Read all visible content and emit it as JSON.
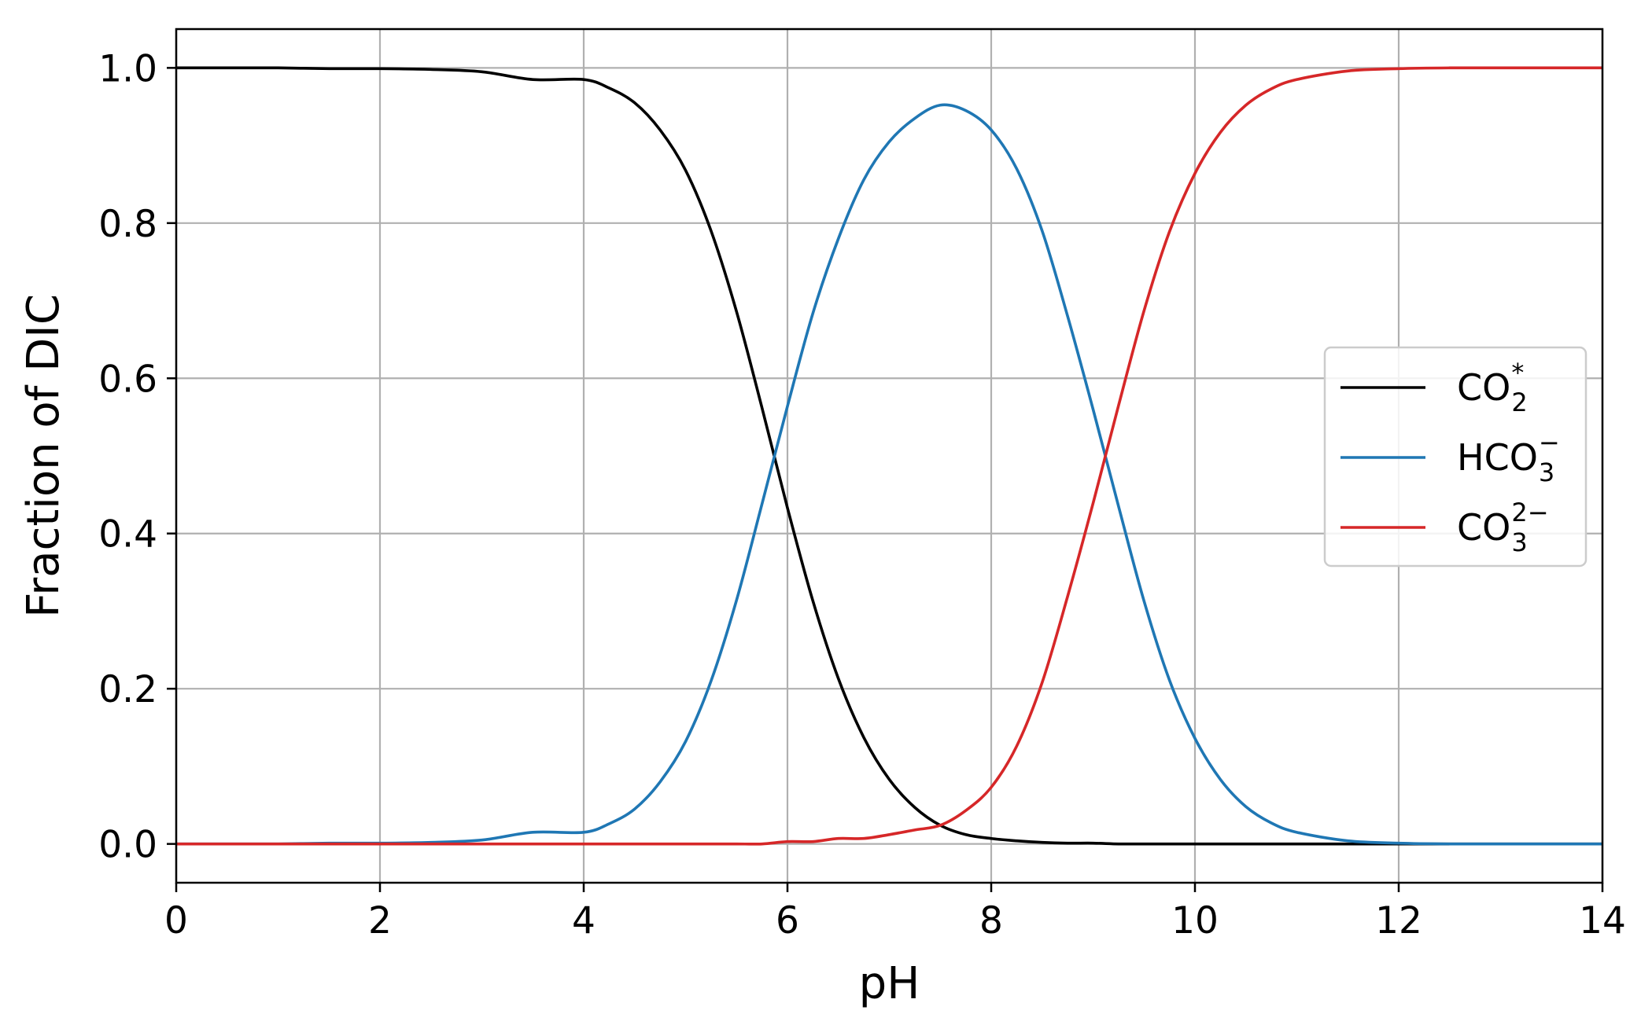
{
  "chart_data": {
    "type": "line",
    "xlabel": "pH",
    "ylabel": "Fraction of DIC",
    "xlim": [
      0,
      14
    ],
    "ylim": [
      -0.05,
      1.05
    ],
    "xticks": [
      0,
      2,
      4,
      6,
      8,
      10,
      12,
      14
    ],
    "xtick_labels": [
      "0",
      "2",
      "4",
      "6",
      "8",
      "10",
      "12",
      "14"
    ],
    "yticks": [
      0.0,
      0.2,
      0.4,
      0.6,
      0.8,
      1.0
    ],
    "ytick_labels": [
      "0.0",
      "0.2",
      "0.4",
      "0.6",
      "0.8",
      "1.0"
    ],
    "grid": true,
    "legend_position": "center-right",
    "x": [
      0,
      0.5,
      1,
      1.5,
      2,
      2.5,
      3,
      3.5,
      4,
      4.25,
      4.5,
      4.75,
      5,
      5.25,
      5.5,
      5.75,
      6,
      6.25,
      6.5,
      6.75,
      7,
      7.25,
      7.5,
      7.75,
      8,
      8.25,
      8.5,
      8.75,
      9,
      9.25,
      9.5,
      9.75,
      10,
      10.25,
      10.5,
      10.75,
      11,
      11.5,
      12,
      12.5,
      13,
      13.5,
      14
    ],
    "series": [
      {
        "name_base": "CO",
        "name_sub": "2",
        "name_sup": "*",
        "color": "#000000",
        "values": [
          1.0,
          1.0,
          1.0,
          0.999,
          0.999,
          0.998,
          0.995,
          0.985,
          0.985,
          0.974,
          0.955,
          0.92,
          0.868,
          0.79,
          0.686,
          0.562,
          0.433,
          0.313,
          0.213,
          0.137,
          0.083,
          0.047,
          0.024,
          0.012,
          0.007,
          0.004,
          0.002,
          0.001,
          0.001,
          0.0,
          0.0,
          0.0,
          0.0,
          0.0,
          0.0,
          0.0,
          0.0,
          0.0,
          0.0,
          0.0,
          0.0,
          0.0,
          0.0
        ]
      },
      {
        "name_base": "HCO",
        "name_sub": "3",
        "name_sup": "−",
        "color": "#1f77b4",
        "values": [
          0.0,
          0.0,
          0.0,
          0.001,
          0.001,
          0.002,
          0.005,
          0.015,
          0.015,
          0.026,
          0.045,
          0.08,
          0.132,
          0.21,
          0.314,
          0.438,
          0.564,
          0.684,
          0.78,
          0.856,
          0.905,
          0.935,
          0.952,
          0.945,
          0.92,
          0.87,
          0.79,
          0.68,
          0.56,
          0.435,
          0.313,
          0.211,
          0.136,
          0.083,
          0.048,
          0.027,
          0.015,
          0.004,
          0.001,
          0.0,
          0.0,
          0.0,
          0.0
        ]
      },
      {
        "name_base": "CO",
        "name_sub": "3",
        "name_sup": "2−",
        "color": "#d62728",
        "values": [
          0.0,
          0.0,
          0.0,
          0.0,
          0.0,
          0.0,
          0.0,
          0.0,
          0.0,
          0.0,
          0.0,
          0.0,
          0.0,
          0.0,
          0.0,
          0.0,
          0.003,
          0.003,
          0.007,
          0.007,
          0.012,
          0.018,
          0.024,
          0.043,
          0.073,
          0.126,
          0.208,
          0.319,
          0.439,
          0.565,
          0.687,
          0.789,
          0.864,
          0.917,
          0.952,
          0.973,
          0.985,
          0.996,
          0.999,
          1.0,
          1.0,
          1.0,
          1.0
        ]
      }
    ]
  }
}
